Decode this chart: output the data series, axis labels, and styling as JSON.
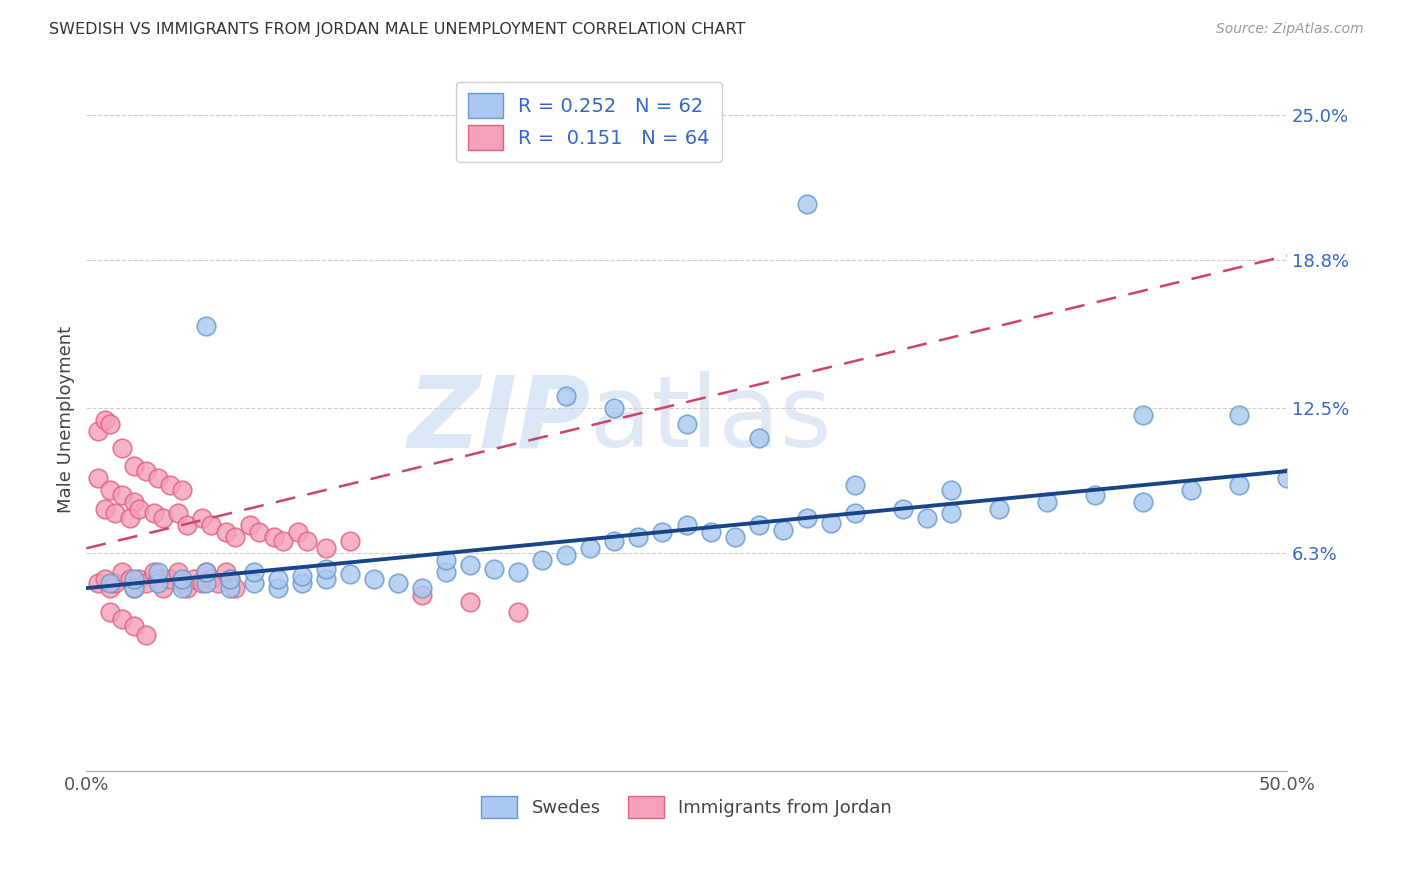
{
  "title": "SWEDISH VS IMMIGRANTS FROM JORDAN MALE UNEMPLOYMENT CORRELATION CHART",
  "source": "Source: ZipAtlas.com",
  "ylabel": "Male Unemployment",
  "xlim": [
    0.0,
    0.5
  ],
  "ylim": [
    -0.03,
    0.27
  ],
  "yticks": [
    0.063,
    0.125,
    0.188,
    0.25
  ],
  "ytick_labels": [
    "6.3%",
    "12.5%",
    "18.8%",
    "25.0%"
  ],
  "xticks": [
    0.0,
    0.1,
    0.2,
    0.3,
    0.4,
    0.5
  ],
  "xtick_labels": [
    "0.0%",
    "",
    "",
    "",
    "",
    "50.0%"
  ],
  "blue_color": "#aac8f0",
  "pink_color": "#f5a0b8",
  "blue_edge": "#6699cc",
  "pink_edge": "#e06080",
  "trend_blue": "#1a4488",
  "trend_pink": "#cc4466",
  "legend_blue_R": "0.252",
  "legend_blue_N": "62",
  "legend_pink_R": "0.151",
  "legend_pink_N": "64",
  "watermark_zip": "ZIP",
  "watermark_atlas": "atlas",
  "background_color": "#ffffff",
  "grid_color": "#cccccc",
  "blue_x": [
    0.01,
    0.02,
    0.02,
    0.03,
    0.03,
    0.04,
    0.04,
    0.05,
    0.05,
    0.06,
    0.06,
    0.07,
    0.07,
    0.08,
    0.08,
    0.09,
    0.09,
    0.1,
    0.1,
    0.11,
    0.12,
    0.13,
    0.14,
    0.15,
    0.15,
    0.16,
    0.17,
    0.18,
    0.19,
    0.2,
    0.21,
    0.22,
    0.23,
    0.24,
    0.25,
    0.26,
    0.27,
    0.28,
    0.29,
    0.3,
    0.31,
    0.32,
    0.34,
    0.35,
    0.36,
    0.38,
    0.4,
    0.42,
    0.44,
    0.46,
    0.48,
    0.5,
    0.3,
    0.2,
    0.22,
    0.25,
    0.28,
    0.32,
    0.36,
    0.44,
    0.48,
    0.05
  ],
  "blue_y": [
    0.05,
    0.048,
    0.052,
    0.05,
    0.055,
    0.048,
    0.052,
    0.05,
    0.055,
    0.048,
    0.052,
    0.05,
    0.055,
    0.048,
    0.052,
    0.05,
    0.053,
    0.052,
    0.056,
    0.054,
    0.052,
    0.05,
    0.048,
    0.055,
    0.06,
    0.058,
    0.056,
    0.055,
    0.06,
    0.062,
    0.065,
    0.068,
    0.07,
    0.072,
    0.075,
    0.072,
    0.07,
    0.075,
    0.073,
    0.078,
    0.076,
    0.08,
    0.082,
    0.078,
    0.08,
    0.082,
    0.085,
    0.088,
    0.085,
    0.09,
    0.092,
    0.095,
    0.212,
    0.13,
    0.125,
    0.118,
    0.112,
    0.092,
    0.09,
    0.122,
    0.122,
    0.16
  ],
  "pink_x": [
    0.005,
    0.008,
    0.01,
    0.012,
    0.015,
    0.018,
    0.02,
    0.022,
    0.025,
    0.028,
    0.03,
    0.032,
    0.035,
    0.038,
    0.04,
    0.042,
    0.045,
    0.048,
    0.05,
    0.052,
    0.055,
    0.058,
    0.06,
    0.062,
    0.005,
    0.008,
    0.01,
    0.015,
    0.02,
    0.025,
    0.03,
    0.035,
    0.04,
    0.005,
    0.01,
    0.015,
    0.02,
    0.008,
    0.012,
    0.018,
    0.022,
    0.028,
    0.032,
    0.038,
    0.042,
    0.048,
    0.052,
    0.058,
    0.062,
    0.068,
    0.072,
    0.078,
    0.082,
    0.088,
    0.092,
    0.1,
    0.11,
    0.14,
    0.16,
    0.18,
    0.01,
    0.015,
    0.02,
    0.025
  ],
  "pink_y": [
    0.05,
    0.052,
    0.048,
    0.05,
    0.055,
    0.052,
    0.048,
    0.052,
    0.05,
    0.055,
    0.052,
    0.048,
    0.052,
    0.055,
    0.05,
    0.048,
    0.052,
    0.05,
    0.055,
    0.052,
    0.05,
    0.055,
    0.052,
    0.048,
    0.115,
    0.12,
    0.118,
    0.108,
    0.1,
    0.098,
    0.095,
    0.092,
    0.09,
    0.095,
    0.09,
    0.088,
    0.085,
    0.082,
    0.08,
    0.078,
    0.082,
    0.08,
    0.078,
    0.08,
    0.075,
    0.078,
    0.075,
    0.072,
    0.07,
    0.075,
    0.072,
    0.07,
    0.068,
    0.072,
    0.068,
    0.065,
    0.068,
    0.045,
    0.042,
    0.038,
    0.038,
    0.035,
    0.032,
    0.028
  ]
}
